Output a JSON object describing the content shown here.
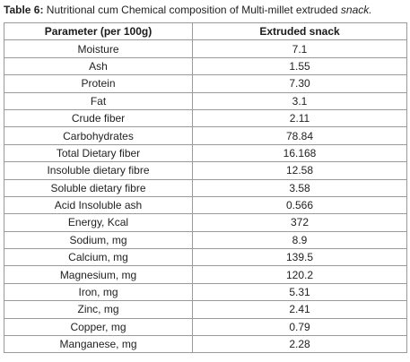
{
  "caption": {
    "label": "Table 6:",
    "text": " Nutritional cum Chemical composition of Multi-millet extruded ",
    "italic": "snack."
  },
  "table": {
    "headers": [
      "Parameter (per 100g)",
      "Extruded snack"
    ],
    "rows": [
      [
        "Moisture",
        "7.1"
      ],
      [
        "Ash",
        "1.55"
      ],
      [
        "Protein",
        "7.30"
      ],
      [
        "Fat",
        "3.1"
      ],
      [
        "Crude fiber",
        "2.11"
      ],
      [
        "Carbohydrates",
        "78.84"
      ],
      [
        "Total Dietary fiber",
        "16.168"
      ],
      [
        "Insoluble dietary fibre",
        "12.58"
      ],
      [
        "Soluble dietary fibre",
        "3.58"
      ],
      [
        "Acid Insoluble ash",
        "0.566"
      ],
      [
        "Energy, Kcal",
        "372"
      ],
      [
        "Sodium, mg",
        "8.9"
      ],
      [
        "Calcium, mg",
        "139.5"
      ],
      [
        "Magnesium, mg",
        "120.2"
      ],
      [
        "Iron, mg",
        "5.31"
      ],
      [
        "Zinc, mg",
        "2.41"
      ],
      [
        "Copper, mg",
        "0.79"
      ],
      [
        "Manganese, mg",
        "2.28"
      ]
    ]
  }
}
